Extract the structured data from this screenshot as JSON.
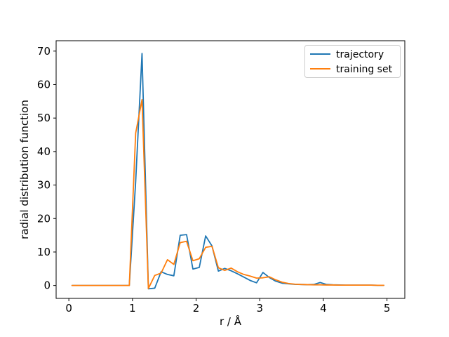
{
  "figure": {
    "background": "#ffffff"
  },
  "chart_data": {
    "type": "line",
    "title": "",
    "xlabel": "r / Å",
    "ylabel": "radial distribution function",
    "xlim": [
      -0.2,
      5.28
    ],
    "ylim": [
      -3.85,
      73.1
    ],
    "xticks": [
      0,
      1,
      2,
      3,
      4,
      5
    ],
    "yticks": [
      0,
      10,
      20,
      30,
      40,
      50,
      60,
      70
    ],
    "grid": false,
    "legend_position": "upper right",
    "legend_frame_color": "#cccccc",
    "axis_color": "#000000",
    "x": [
      0.05,
      0.15,
      0.25,
      0.35,
      0.45,
      0.55,
      0.65,
      0.75,
      0.85,
      0.95,
      1.05,
      1.15,
      1.25,
      1.35,
      1.45,
      1.55,
      1.65,
      1.75,
      1.85,
      1.95,
      2.05,
      2.15,
      2.25,
      2.35,
      2.45,
      2.55,
      2.65,
      2.75,
      2.85,
      2.95,
      3.05,
      3.15,
      3.25,
      3.35,
      3.45,
      3.55,
      3.65,
      3.75,
      3.85,
      3.95,
      4.05,
      4.15,
      4.25,
      4.35,
      4.45,
      4.55,
      4.65,
      4.75,
      4.85,
      4.95
    ],
    "series": [
      {
        "name": "trajectory",
        "color": "#1f77b4",
        "values": [
          0,
          0,
          0,
          0,
          0,
          0,
          0,
          0,
          0,
          0,
          31,
          69.3,
          -1.0,
          -0.8,
          4.1,
          3.3,
          2.9,
          15.0,
          15.2,
          4.9,
          5.4,
          14.8,
          11.8,
          4.3,
          5.1,
          4.4,
          3.5,
          2.5,
          1.5,
          0.8,
          3.9,
          2.4,
          1.3,
          0.7,
          0.5,
          0.35,
          0.3,
          0.25,
          0.3,
          0.9,
          0.3,
          0.2,
          0.15,
          0.1,
          0.1,
          0.1,
          0.1,
          0.1,
          0.05,
          0.05
        ]
      },
      {
        "name": "training set",
        "color": "#ff7f0e",
        "values": [
          0,
          0,
          0,
          0,
          0,
          0,
          0,
          0,
          0,
          0,
          45.5,
          55.5,
          -0.9,
          3.0,
          3.7,
          7.7,
          6.3,
          12.8,
          13.2,
          7.4,
          8.0,
          11.4,
          11.7,
          5.3,
          4.5,
          5.2,
          4.1,
          3.3,
          2.8,
          2.2,
          2.3,
          2.6,
          1.7,
          1.0,
          0.6,
          0.4,
          0.3,
          0.25,
          0.2,
          0.2,
          0.15,
          0.15,
          0.1,
          0.1,
          0.1,
          0.1,
          0.1,
          0.1,
          0.05,
          0.05
        ]
      }
    ]
  }
}
